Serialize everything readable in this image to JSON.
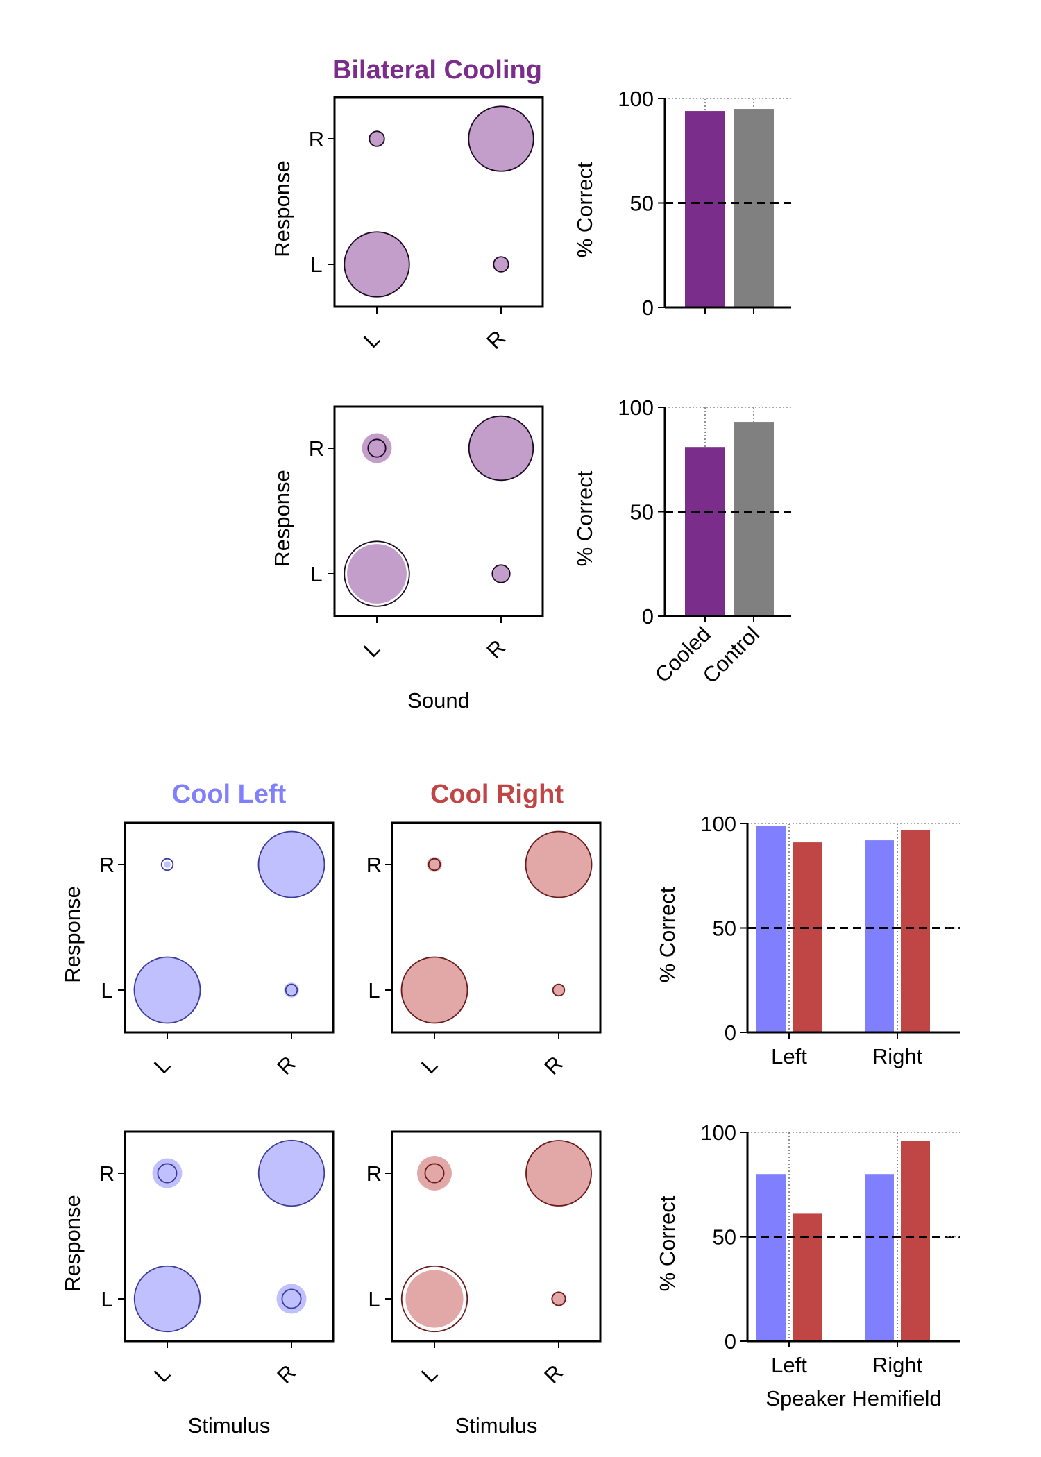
{
  "titles": {
    "bilateral": "Bilateral Cooling",
    "cool_left": "Cool Left",
    "cool_right": "Cool Right"
  },
  "colors": {
    "purple": "#7b2d8b",
    "purple_light": "#bf96c6",
    "purple_mid": "#a874b3",
    "gray": "#808080",
    "blue": "#8080ff",
    "blue_light": "#bbbbff",
    "red": "#c04646",
    "red_light": "#e0a0a0"
  },
  "chart_data": [
    {
      "id": "bilateral-bubble-1",
      "type": "scatter",
      "title": "Bilateral Cooling",
      "xlabel": "",
      "ylabel": "Response",
      "x_ticks": [
        "L",
        "R"
      ],
      "y_ticks": [
        "L",
        "R"
      ],
      "bubbles": [
        {
          "stimulus": "L",
          "response": "L",
          "cooled": 0.94,
          "control": 0.95
        },
        {
          "stimulus": "L",
          "response": "R",
          "cooled": 0.06,
          "control": 0.05
        },
        {
          "stimulus": "R",
          "response": "R",
          "cooled": 0.94,
          "control": 0.95
        },
        {
          "stimulus": "R",
          "response": "L",
          "cooled": 0.06,
          "control": 0.05
        }
      ]
    },
    {
      "id": "bilateral-bar-1",
      "type": "bar",
      "ylabel": "% Correct",
      "yticks": [
        0,
        50,
        100
      ],
      "ylim": [
        0,
        100
      ],
      "chance": 50,
      "categories": [
        "Cooled",
        "Control"
      ],
      "show_category_labels": false,
      "series": [
        {
          "values": [
            94,
            95
          ]
        }
      ]
    },
    {
      "id": "bilateral-bubble-2",
      "type": "scatter",
      "xlabel": "Sound",
      "ylabel": "Response",
      "x_ticks": [
        "L",
        "R"
      ],
      "y_ticks": [
        "L",
        "R"
      ],
      "bubbles": [
        {
          "stimulus": "L",
          "response": "L",
          "cooled": 0.8,
          "control": 0.95
        },
        {
          "stimulus": "L",
          "response": "R",
          "cooled": 0.2,
          "control": 0.07
        },
        {
          "stimulus": "R",
          "response": "R",
          "cooled": 0.94,
          "control": 0.93
        },
        {
          "stimulus": "R",
          "response": "L",
          "cooled": 0.06,
          "control": 0.07
        }
      ]
    },
    {
      "id": "bilateral-bar-2",
      "type": "bar",
      "ylabel": "% Correct",
      "yticks": [
        0,
        50,
        100
      ],
      "ylim": [
        0,
        100
      ],
      "chance": 50,
      "categories": [
        "Cooled",
        "Control"
      ],
      "show_category_labels": true,
      "series": [
        {
          "values": [
            81,
            93
          ]
        }
      ]
    },
    {
      "id": "cool-left-bubble-1",
      "type": "scatter",
      "title": "Cool Left",
      "xlabel": "",
      "ylabel": "Response",
      "x_ticks": [
        "L",
        "R"
      ],
      "y_ticks": [
        "L",
        "R"
      ],
      "bubbles": [
        {
          "stimulus": "L",
          "response": "L",
          "cooled": 0.99,
          "control": 0.98
        },
        {
          "stimulus": "L",
          "response": "R",
          "cooled": 0.01,
          "control": 0.03
        },
        {
          "stimulus": "R",
          "response": "R",
          "cooled": 0.98,
          "control": 0.98
        },
        {
          "stimulus": "R",
          "response": "L",
          "cooled": 0.05,
          "control": 0.03
        }
      ]
    },
    {
      "id": "cool-right-bubble-1",
      "type": "scatter",
      "title": "Cool Right",
      "xlabel": "",
      "ylabel": "",
      "x_ticks": [
        "L",
        "R"
      ],
      "y_ticks": [
        "L",
        "R"
      ],
      "bubbles": [
        {
          "stimulus": "L",
          "response": "L",
          "cooled": 0.98,
          "control": 0.98
        },
        {
          "stimulus": "L",
          "response": "R",
          "cooled": 0.05,
          "control": 0.03
        },
        {
          "stimulus": "R",
          "response": "R",
          "cooled": 0.97,
          "control": 0.98
        },
        {
          "stimulus": "R",
          "response": "L",
          "cooled": 0.03,
          "control": 0.03
        }
      ]
    },
    {
      "id": "hemifield-bar-1",
      "type": "bar",
      "ylabel": "% Correct",
      "xlabel": "",
      "yticks": [
        0,
        50,
        100
      ],
      "ylim": [
        0,
        100
      ],
      "chance": 50,
      "categories": [
        "Left",
        "Right"
      ],
      "series": [
        {
          "color": "blue",
          "values": [
            99,
            92
          ]
        },
        {
          "color": "red",
          "values": [
            91,
            97
          ]
        }
      ]
    },
    {
      "id": "cool-left-bubble-2",
      "type": "scatter",
      "xlabel": "Stimulus",
      "ylabel": "Response",
      "x_ticks": [
        "L",
        "R"
      ],
      "y_ticks": [
        "L",
        "R"
      ],
      "bubbles": [
        {
          "stimulus": "L",
          "response": "L",
          "cooled": 0.94,
          "control": 0.97
        },
        {
          "stimulus": "L",
          "response": "R",
          "cooled": 0.2,
          "control": 0.08
        },
        {
          "stimulus": "R",
          "response": "R",
          "cooled": 0.93,
          "control": 0.97
        },
        {
          "stimulus": "R",
          "response": "L",
          "cooled": 0.2,
          "control": 0.08
        }
      ]
    },
    {
      "id": "cool-right-bubble-2",
      "type": "scatter",
      "xlabel": "Stimulus",
      "ylabel": "",
      "x_ticks": [
        "L",
        "R"
      ],
      "y_ticks": [
        "L",
        "R"
      ],
      "bubbles": [
        {
          "stimulus": "L",
          "response": "L",
          "cooled": 0.75,
          "control": 0.97
        },
        {
          "stimulus": "L",
          "response": "R",
          "cooled": 0.27,
          "control": 0.08
        },
        {
          "stimulus": "R",
          "response": "R",
          "cooled": 0.96,
          "control": 0.96
        },
        {
          "stimulus": "R",
          "response": "L",
          "cooled": 0.05,
          "control": 0.04
        }
      ]
    },
    {
      "id": "hemifield-bar-2",
      "type": "bar",
      "ylabel": "% Correct",
      "xlabel": "Speaker Hemifield",
      "yticks": [
        0,
        50,
        100
      ],
      "ylim": [
        0,
        100
      ],
      "chance": 50,
      "categories": [
        "Left",
        "Right"
      ],
      "series": [
        {
          "color": "blue",
          "values": [
            80,
            80
          ]
        },
        {
          "color": "red",
          "values": [
            61,
            96
          ]
        }
      ]
    }
  ]
}
